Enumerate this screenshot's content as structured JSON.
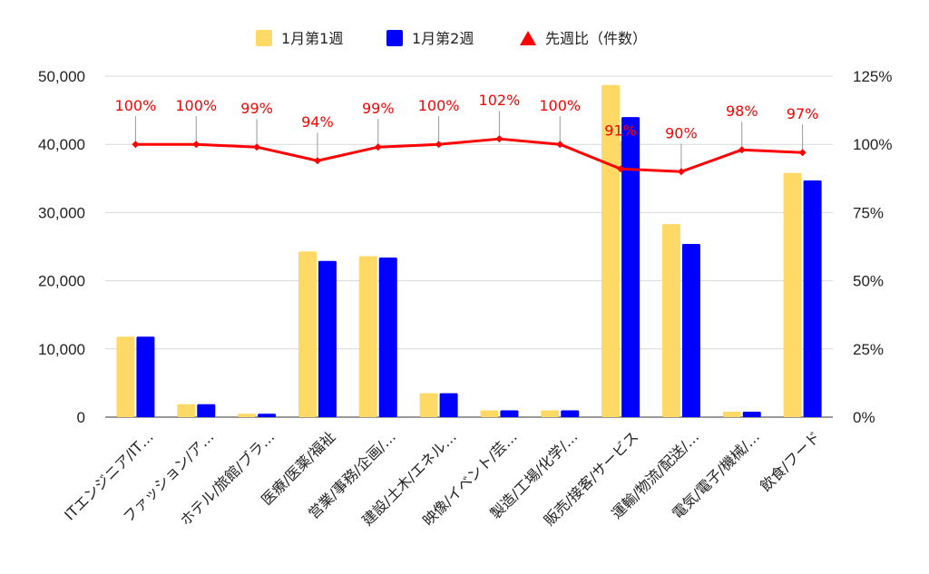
{
  "chart_data": {
    "type": "bar",
    "categories": [
      "ITエンジニア/IT…",
      "ファッション/ア…",
      "ホテル/旅館/ブラ…",
      "医療/医薬/福祉",
      "営業/事務/企画/…",
      "建設/土木/エネル…",
      "映像/イベント/芸…",
      "製造/工場/化学/…",
      "販売/接客/サービス",
      "運輸/物流/配送/…",
      "電気/電子/機械/…",
      "飲食/フード"
    ],
    "series": [
      {
        "name": "1月第1週",
        "type": "bar",
        "axis": "left",
        "color": "#ffd966",
        "values": [
          11800,
          1900,
          500,
          24300,
          23600,
          3500,
          1000,
          1000,
          48700,
          28300,
          800,
          35800
        ]
      },
      {
        "name": "1月第2週",
        "type": "bar",
        "axis": "left",
        "color": "#0000ff",
        "values": [
          11800,
          1900,
          500,
          22900,
          23400,
          3500,
          1000,
          1000,
          44000,
          25400,
          800,
          34700
        ]
      },
      {
        "name": "先週比（件数）",
        "type": "line",
        "axis": "right",
        "color": "#ff0000",
        "values": [
          100,
          100,
          99,
          94,
          99,
          100,
          102,
          100,
          91,
          90,
          98,
          97
        ],
        "labels": [
          "100%",
          "100%",
          "99%",
          "94%",
          "99%",
          "100%",
          "102%",
          "100%",
          "91%",
          "90%",
          "98%",
          "97%"
        ]
      }
    ],
    "y_left": {
      "lim": [
        0,
        50000
      ],
      "ticks": [
        0,
        10000,
        20000,
        30000,
        40000,
        50000
      ],
      "tick_labels": [
        "0",
        "10,000",
        "20,000",
        "30,000",
        "40,000",
        "50,000"
      ]
    },
    "y_right": {
      "lim": [
        0,
        125
      ],
      "ticks": [
        0,
        25,
        50,
        75,
        100,
        125
      ],
      "tick_labels": [
        "0%",
        "25%",
        "50%",
        "75%",
        "100%",
        "125%"
      ]
    },
    "title": "",
    "xlabel": "",
    "legend_position": "top",
    "grid": true
  }
}
